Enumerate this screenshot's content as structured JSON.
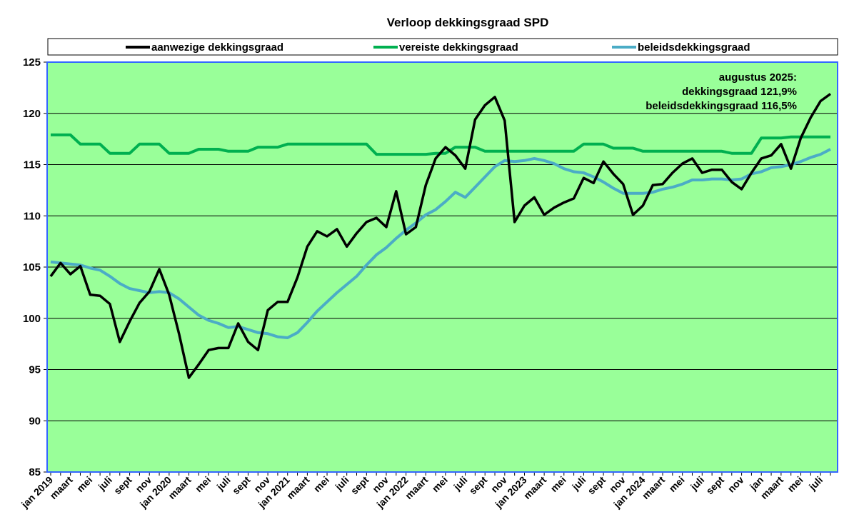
{
  "chart_data": {
    "type": "line",
    "title": "Verloop dekkingsgraad SPD",
    "xlabel": "",
    "ylabel": "",
    "ylim": [
      85,
      125
    ],
    "yticks": [
      "85",
      "90",
      "95",
      "100",
      "105",
      "110",
      "115",
      "120",
      "125"
    ],
    "grid": true,
    "legend_position": "top",
    "plot_background": "#99ff99",
    "x_tick_labels": [
      "jan 2019",
      "maart",
      "mei",
      "juli",
      "sept",
      "nov",
      "jan 2020",
      "maart",
      "mei",
      "juli",
      "sept",
      "nov",
      "jan 2021",
      "maart",
      "mei",
      "juli",
      "sept",
      "nov",
      "jan 2022",
      "maart",
      "mei",
      "juli",
      "sept",
      "nov",
      "jan 2023",
      "maart",
      "mei",
      "juli",
      "sept",
      "nov",
      "jan 2024",
      "maart",
      "mei",
      "juli",
      "sept",
      "nov",
      "jan",
      "maart",
      "mei",
      "juli"
    ],
    "x": [
      "2019-01",
      "2019-02",
      "2019-03",
      "2019-04",
      "2019-05",
      "2019-06",
      "2019-07",
      "2019-08",
      "2019-09",
      "2019-10",
      "2019-11",
      "2019-12",
      "2020-01",
      "2020-02",
      "2020-03",
      "2020-04",
      "2020-05",
      "2020-06",
      "2020-07",
      "2020-08",
      "2020-09",
      "2020-10",
      "2020-11",
      "2020-12",
      "2021-01",
      "2021-02",
      "2021-03",
      "2021-04",
      "2021-05",
      "2021-06",
      "2021-07",
      "2021-08",
      "2021-09",
      "2021-10",
      "2021-11",
      "2021-12",
      "2022-01",
      "2022-02",
      "2022-03",
      "2022-04",
      "2022-05",
      "2022-06",
      "2022-07",
      "2022-08",
      "2022-09",
      "2022-10",
      "2022-11",
      "2022-12",
      "2023-01",
      "2023-02",
      "2023-03",
      "2023-04",
      "2023-05",
      "2023-06",
      "2023-07",
      "2023-08",
      "2023-09",
      "2023-10",
      "2023-11",
      "2023-12",
      "2024-01",
      "2024-02",
      "2024-03",
      "2024-04",
      "2024-05",
      "2024-06",
      "2024-07",
      "2024-08",
      "2024-09",
      "2024-10",
      "2024-11",
      "2024-12",
      "2025-01",
      "2025-02",
      "2025-03",
      "2025-04",
      "2025-05",
      "2025-06",
      "2025-07",
      "2025-08"
    ],
    "series": [
      {
        "name": "aanwezige dekkingsgraad",
        "color": "#000000",
        "values": [
          104.1,
          105.4,
          104.3,
          105.1,
          102.3,
          102.2,
          101.4,
          97.7,
          99.7,
          101.5,
          102.6,
          104.8,
          102.3,
          98.5,
          94.2,
          95.5,
          96.9,
          97.1,
          97.1,
          99.5,
          97.7,
          96.9,
          100.8,
          101.6,
          101.6,
          104.0,
          107.0,
          108.5,
          108.0,
          108.7,
          107.0,
          108.3,
          109.4,
          109.8,
          108.9,
          112.4,
          108.2,
          108.9,
          113.0,
          115.6,
          116.7,
          115.9,
          114.6,
          119.4,
          120.8,
          121.6,
          119.3,
          109.4,
          111.0,
          111.8,
          110.1,
          110.8,
          111.3,
          111.7,
          113.7,
          113.2,
          115.3,
          114.1,
          113.1,
          110.1,
          111.0,
          113.0,
          113.1,
          114.2,
          115.1,
          115.6,
          114.2,
          114.5,
          114.5,
          113.3,
          112.6,
          114.2,
          115.6,
          115.9,
          117.0,
          114.6,
          117.6,
          119.6,
          121.2,
          121.9
        ]
      },
      {
        "name": "vereiste dekkingsgraad",
        "color": "#00b050",
        "values": [
          117.9,
          117.9,
          117.9,
          117.0,
          117.0,
          117.0,
          116.1,
          116.1,
          116.1,
          117.0,
          117.0,
          117.0,
          116.1,
          116.1,
          116.1,
          116.5,
          116.5,
          116.5,
          116.3,
          116.3,
          116.3,
          116.7,
          116.7,
          116.7,
          117.0,
          117.0,
          117.0,
          117.0,
          117.0,
          117.0,
          117.0,
          117.0,
          117.0,
          116.0,
          116.0,
          116.0,
          116.0,
          116.0,
          116.0,
          116.1,
          116.1,
          116.7,
          116.7,
          116.7,
          116.3,
          116.3,
          116.3,
          116.3,
          116.3,
          116.3,
          116.3,
          116.3,
          116.3,
          116.3,
          117.0,
          117.0,
          117.0,
          116.6,
          116.6,
          116.6,
          116.3,
          116.3,
          116.3,
          116.3,
          116.3,
          116.3,
          116.3,
          116.3,
          116.3,
          116.1,
          116.1,
          116.1,
          117.6,
          117.6,
          117.6,
          117.7,
          117.7,
          117.7,
          117.7,
          117.7
        ]
      },
      {
        "name": "beleidsdekkingsgraad",
        "color": "#4bacc6",
        "values": [
          105.5,
          105.4,
          105.3,
          105.2,
          104.9,
          104.7,
          104.1,
          103.4,
          102.9,
          102.7,
          102.5,
          102.6,
          102.5,
          101.9,
          101.1,
          100.3,
          99.8,
          99.5,
          99.1,
          99.2,
          98.9,
          98.6,
          98.5,
          98.2,
          98.1,
          98.6,
          99.6,
          100.7,
          101.6,
          102.5,
          103.3,
          104.1,
          105.2,
          106.2,
          106.9,
          107.8,
          108.6,
          109.3,
          110.1,
          110.6,
          111.4,
          112.3,
          111.8,
          112.8,
          113.8,
          114.8,
          115.4,
          115.3,
          115.4,
          115.6,
          115.4,
          115.1,
          114.6,
          114.3,
          114.2,
          113.8,
          113.3,
          112.7,
          112.2,
          112.2,
          112.2,
          112.3,
          112.6,
          112.8,
          113.1,
          113.5,
          113.5,
          113.6,
          113.6,
          113.5,
          113.6,
          114.1,
          114.3,
          114.7,
          114.8,
          115.0,
          115.3,
          115.7,
          116.0,
          116.5
        ]
      }
    ],
    "annotation": [
      "augustus 2025:",
      "dekkingsgraad 121,9%",
      "beleidsdekkingsgraad 116,5%"
    ]
  }
}
